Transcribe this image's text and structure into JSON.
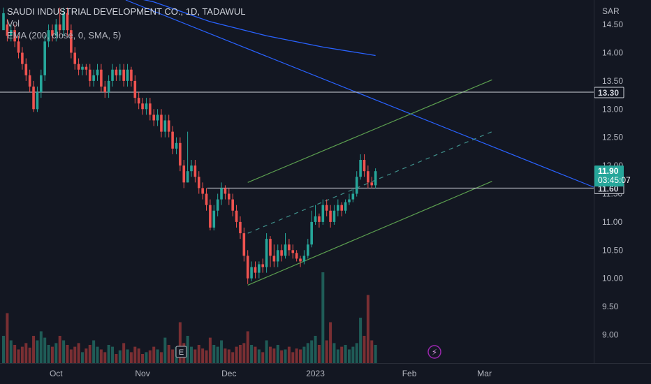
{
  "header": {
    "title": "SAUDI INDUSTRIAL DEVELOPMENT CO., 1D, TADAWUL",
    "vol_label": "Vol",
    "ema_label": "EMA (200, close, 0, SMA, 5)"
  },
  "currency": "SAR",
  "colors": {
    "background": "#131722",
    "up": "#26a69a",
    "down": "#ef5350",
    "ema": "#2962ff",
    "channel": "#5b9e4f",
    "hline": "#d1d4dc"
  },
  "price_tags": {
    "last_price": "11.90",
    "countdown": "03:45:07",
    "hline_upper": "13.30",
    "hline_lower": "11.60"
  },
  "badges": {
    "earnings": "E",
    "dividend": "⚡"
  },
  "chart_data": {
    "type": "candlestick",
    "title": "SAUDI INDUSTRIAL DEVELOPMENT CO., 1D, TADAWUL",
    "ylim": [
      8.5,
      15.0
    ],
    "y_ticks": [
      9.0,
      9.5,
      10.0,
      10.5,
      11.0,
      11.5,
      12.0,
      12.5,
      13.0,
      13.5,
      14.0,
      14.5
    ],
    "y_tick_labels": [
      "9.00",
      "9.50",
      "10.00",
      "10.50",
      "11.00",
      "11.50",
      "12.00",
      "12.50",
      "13.00",
      "13.50",
      "14.00",
      "14.50"
    ],
    "x_ticks": [
      {
        "label": "Oct",
        "bar": 14
      },
      {
        "label": "Nov",
        "bar": 37
      },
      {
        "label": "Dec",
        "bar": 60
      },
      {
        "label": "2023",
        "bar": 83
      },
      {
        "label": "Feb",
        "bar": 108
      },
      {
        "label": "Mar",
        "bar": 128
      }
    ],
    "candles": [
      [
        14.4,
        14.7,
        14.5,
        14.8
      ],
      [
        14.5,
        14.3,
        14.6,
        14.2
      ],
      [
        14.3,
        14.4,
        14.5,
        14.2
      ],
      [
        14.4,
        14.2,
        14.5,
        14.1
      ],
      [
        14.2,
        14.0,
        14.3,
        13.9
      ],
      [
        14.0,
        13.8,
        14.1,
        13.7
      ],
      [
        13.8,
        13.6,
        13.9,
        13.5
      ],
      [
        13.6,
        13.4,
        13.7,
        13.3
      ],
      [
        13.4,
        13.0,
        13.5,
        12.95
      ],
      [
        13.0,
        13.3,
        13.4,
        12.95
      ],
      [
        13.3,
        13.6,
        13.7,
        13.2
      ],
      [
        13.6,
        14.2,
        14.3,
        13.5
      ],
      [
        14.2,
        14.4,
        14.5,
        14.1
      ],
      [
        14.4,
        14.3,
        14.5,
        14.2
      ],
      [
        14.3,
        14.5,
        14.6,
        14.2
      ],
      [
        14.5,
        14.4,
        14.8,
        14.3
      ],
      [
        14.4,
        14.7,
        14.8,
        14.3
      ],
      [
        14.7,
        14.4,
        14.8,
        14.3
      ],
      [
        14.4,
        14.0,
        14.5,
        13.9
      ],
      [
        14.0,
        13.8,
        14.1,
        13.7
      ],
      [
        13.8,
        13.7,
        13.9,
        13.6
      ],
      [
        13.7,
        13.75,
        13.8,
        13.6
      ],
      [
        13.75,
        13.7,
        13.8,
        13.6
      ],
      [
        13.7,
        13.5,
        13.8,
        13.4
      ],
      [
        13.5,
        13.6,
        13.7,
        13.4
      ],
      [
        13.6,
        13.7,
        13.8,
        13.5
      ],
      [
        13.7,
        13.4,
        13.8,
        13.3
      ],
      [
        13.4,
        13.3,
        13.5,
        13.2
      ],
      [
        13.3,
        13.5,
        13.6,
        13.2
      ],
      [
        13.5,
        13.7,
        13.8,
        13.4
      ],
      [
        13.7,
        13.6,
        13.75,
        13.5
      ],
      [
        13.6,
        13.7,
        13.8,
        13.5
      ],
      [
        13.7,
        13.5,
        13.8,
        13.4
      ],
      [
        13.5,
        13.7,
        13.8,
        13.4
      ],
      [
        13.7,
        13.5,
        13.75,
        13.4
      ],
      [
        13.5,
        13.2,
        13.6,
        13.1
      ],
      [
        13.2,
        13.1,
        13.3,
        13.0
      ],
      [
        13.1,
        13.0,
        13.2,
        12.9
      ],
      [
        13.0,
        13.1,
        13.2,
        12.9
      ],
      [
        13.1,
        12.9,
        13.2,
        12.8
      ],
      [
        12.9,
        12.8,
        13.0,
        12.7
      ],
      [
        12.8,
        12.9,
        13.0,
        12.7
      ],
      [
        12.9,
        12.6,
        13.0,
        12.5
      ],
      [
        12.6,
        12.8,
        12.9,
        12.5
      ],
      [
        12.8,
        12.6,
        12.9,
        12.5
      ],
      [
        12.6,
        12.3,
        12.7,
        12.2
      ],
      [
        12.3,
        12.4,
        12.5,
        12.2
      ],
      [
        12.4,
        12.0,
        12.5,
        11.9
      ],
      [
        12.0,
        11.7,
        12.1,
        11.6
      ],
      [
        11.7,
        11.9,
        12.6,
        11.7
      ],
      [
        11.9,
        12.0,
        12.1,
        11.8
      ],
      [
        12.0,
        11.8,
        12.1,
        11.7
      ],
      [
        11.8,
        11.6,
        11.9,
        11.5
      ],
      [
        11.6,
        11.5,
        11.7,
        11.4
      ],
      [
        11.5,
        11.3,
        11.6,
        11.2
      ],
      [
        11.3,
        10.9,
        11.4,
        10.85
      ],
      [
        10.9,
        11.2,
        11.3,
        10.85
      ],
      [
        11.2,
        11.4,
        11.5,
        11.1
      ],
      [
        11.4,
        11.6,
        11.7,
        11.3
      ],
      [
        11.6,
        11.5,
        11.65,
        11.4
      ],
      [
        11.5,
        11.4,
        11.6,
        11.3
      ],
      [
        11.4,
        11.2,
        11.5,
        11.1
      ],
      [
        11.2,
        11.0,
        11.3,
        10.9
      ],
      [
        11.0,
        10.8,
        11.1,
        10.7
      ],
      [
        10.8,
        10.4,
        10.9,
        10.3
      ],
      [
        10.4,
        10.0,
        10.5,
        9.9
      ],
      [
        10.0,
        10.2,
        10.3,
        9.95
      ],
      [
        10.2,
        10.1,
        10.3,
        10.0
      ],
      [
        10.1,
        10.25,
        10.3,
        10.0
      ],
      [
        10.25,
        10.2,
        10.35,
        10.1
      ],
      [
        10.2,
        10.7,
        10.8,
        10.1
      ],
      [
        10.7,
        10.4,
        10.75,
        10.2
      ],
      [
        10.4,
        10.3,
        10.6,
        10.2
      ],
      [
        10.3,
        10.5,
        10.6,
        10.2
      ],
      [
        10.5,
        10.4,
        10.6,
        10.3
      ],
      [
        10.4,
        10.6,
        10.8,
        10.35
      ],
      [
        10.6,
        10.5,
        10.7,
        10.4
      ],
      [
        10.5,
        10.45,
        10.6,
        10.35
      ],
      [
        10.45,
        10.35,
        10.5,
        10.3
      ],
      [
        10.35,
        10.3,
        10.4,
        10.2
      ],
      [
        10.3,
        10.4,
        10.5,
        10.25
      ],
      [
        10.4,
        10.6,
        10.7,
        10.35
      ],
      [
        10.6,
        11.0,
        11.2,
        10.55
      ],
      [
        11.0,
        11.1,
        11.3,
        10.95
      ],
      [
        11.1,
        11.0,
        11.15,
        10.9
      ],
      [
        11.0,
        11.3,
        11.4,
        10.95
      ],
      [
        11.3,
        11.2,
        11.4,
        11.1
      ],
      [
        11.2,
        11.0,
        11.3,
        10.9
      ],
      [
        11.0,
        11.2,
        11.3,
        10.95
      ],
      [
        11.2,
        11.3,
        11.4,
        11.1
      ],
      [
        11.3,
        11.2,
        11.35,
        11.1
      ],
      [
        11.2,
        11.35,
        11.4,
        11.15
      ],
      [
        11.35,
        11.4,
        11.5,
        11.3
      ],
      [
        11.4,
        11.5,
        11.6,
        11.35
      ],
      [
        11.5,
        11.8,
        11.9,
        11.45
      ],
      [
        11.8,
        12.1,
        12.2,
        11.75
      ],
      [
        12.1,
        11.9,
        12.2,
        11.8
      ],
      [
        11.9,
        11.7,
        12.0,
        11.6
      ],
      [
        11.7,
        11.65,
        11.8,
        11.6
      ],
      [
        11.65,
        11.9,
        11.95,
        11.6
      ]
    ],
    "volume_ratio": [
      0.3,
      0.55,
      0.25,
      0.2,
      0.15,
      0.18,
      0.22,
      0.17,
      0.3,
      0.25,
      0.35,
      0.28,
      0.2,
      0.18,
      0.22,
      0.3,
      0.25,
      0.2,
      0.15,
      0.18,
      0.22,
      0.12,
      0.16,
      0.2,
      0.25,
      0.18,
      0.15,
      0.12,
      0.2,
      0.18,
      0.1,
      0.14,
      0.22,
      0.15,
      0.12,
      0.18,
      0.16,
      0.1,
      0.12,
      0.14,
      0.18,
      0.15,
      0.12,
      0.28,
      0.2,
      0.15,
      0.18,
      0.45,
      0.22,
      0.3,
      0.18,
      0.15,
      0.2,
      0.16,
      0.14,
      0.28,
      0.2,
      0.18,
      0.25,
      0.16,
      0.15,
      0.12,
      0.18,
      0.2,
      0.22,
      0.35,
      0.2,
      0.18,
      0.15,
      0.12,
      0.25,
      0.18,
      0.16,
      0.2,
      0.14,
      0.15,
      0.18,
      0.12,
      0.16,
      0.15,
      0.18,
      0.22,
      0.25,
      0.3,
      0.2,
      1.0,
      0.25,
      0.45,
      0.22,
      0.15,
      0.18,
      0.2,
      0.15,
      0.18,
      0.22,
      0.5,
      0.3,
      0.75,
      0.25,
      0.2
    ],
    "ema": [
      [
        0,
        15.7
      ],
      [
        20,
        15.2
      ],
      [
        40,
        14.9
      ],
      [
        55,
        14.55
      ],
      [
        70,
        14.3
      ],
      [
        85,
        14.1
      ],
      [
        99,
        13.95
      ]
    ],
    "channel": {
      "lower": [
        [
          65,
          9.88
        ],
        [
          130,
          11.72
        ]
      ],
      "mid": [
        [
          65,
          10.8
        ],
        [
          130,
          12.6
        ]
      ],
      "upper": [
        [
          65,
          11.7
        ],
        [
          130,
          13.52
        ]
      ]
    },
    "hlines": [
      {
        "value": 13.3,
        "from_bar": null
      },
      {
        "value": 11.6,
        "from_bar": 54.2
      }
    ]
  }
}
